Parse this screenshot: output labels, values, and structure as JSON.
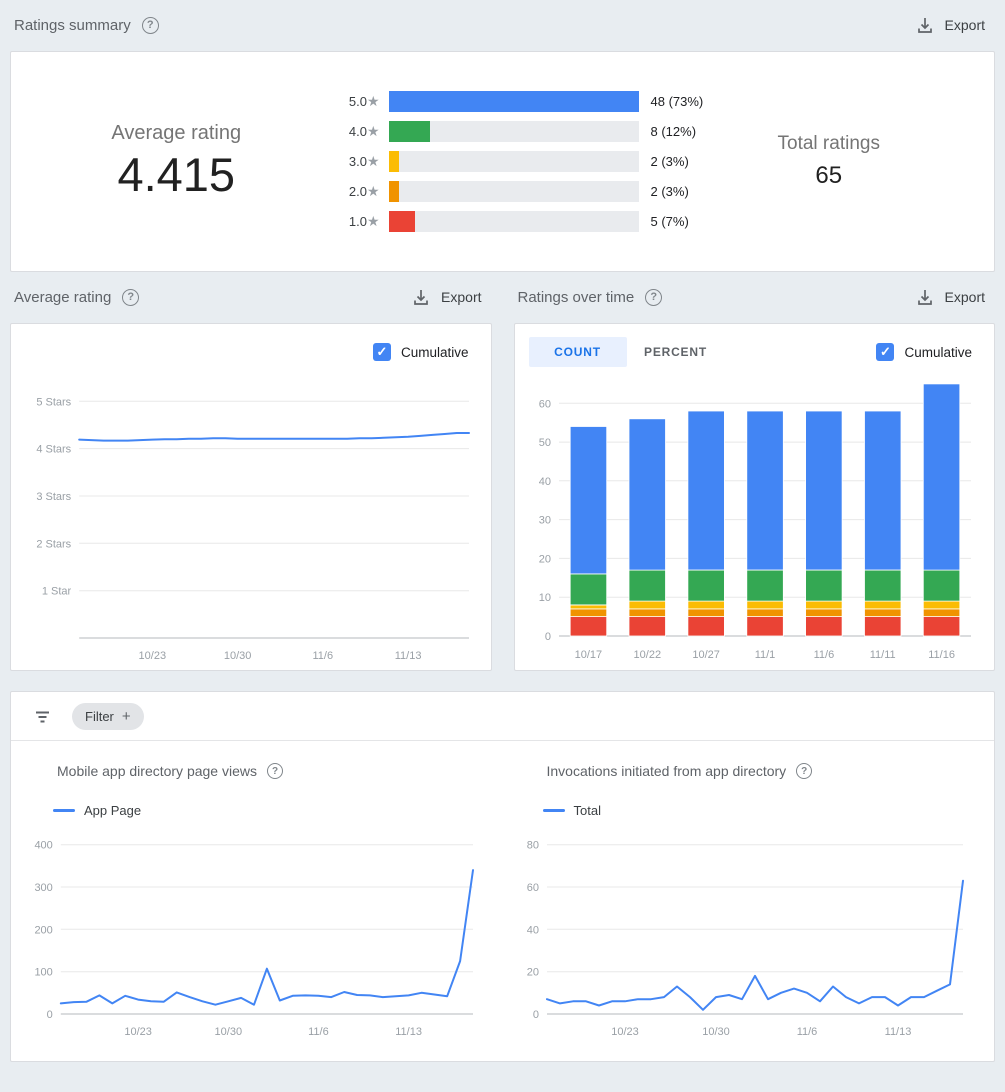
{
  "icons": {
    "help": "?",
    "check": "✓",
    "star": "★",
    "plus": "+"
  },
  "colors": {
    "accent_blue": "#4285f4",
    "green": "#34a853",
    "yellow": "#fbbc04",
    "orange": "#f09300",
    "red": "#ea4335",
    "tab_active_bg": "#e8f0fe",
    "tab_active_text": "#1a73e8"
  },
  "header": {
    "title": "Ratings summary",
    "export_label": "Export"
  },
  "summary": {
    "average_label": "Average rating",
    "average_value": "4.415",
    "total_label": "Total ratings",
    "total_value": "65"
  },
  "sections": {
    "average_rating": {
      "title": "Average rating",
      "export_label": "Export",
      "cumulative_label": "Cumulative"
    },
    "ratings_over_time": {
      "title": "Ratings over time",
      "export_label": "Export",
      "tabs": [
        "COUNT",
        "PERCENT"
      ],
      "active_tab": "COUNT",
      "cumulative_label": "Cumulative"
    }
  },
  "filter": {
    "chip_label": "Filter"
  },
  "bottom": {
    "left_title": "Mobile app directory page views",
    "right_title": "Invocations initiated from app directory"
  },
  "chart_data": [
    {
      "type": "bar",
      "orientation": "horizontal",
      "title": "Ratings summary",
      "total": 65,
      "max_value": 48,
      "rows": [
        {
          "stars": "5.0",
          "value": 48,
          "label": "48 (73%)",
          "color": "#4285f4"
        },
        {
          "stars": "4.0",
          "value": 8,
          "label": "8 (12%)",
          "color": "#34a853"
        },
        {
          "stars": "3.0",
          "value": 2,
          "label": "2 (3%)",
          "color": "#fbbc04"
        },
        {
          "stars": "2.0",
          "value": 2,
          "label": "2 (3%)",
          "color": "#f09300"
        },
        {
          "stars": "1.0",
          "value": 5,
          "label": "5 (7%)",
          "color": "#ea4335"
        }
      ]
    },
    {
      "type": "line",
      "title": "Average rating (cumulative)",
      "color": "#4285f4",
      "ylim": [
        0,
        5.45
      ],
      "grid": [
        {
          "v": 5,
          "label": "5 Stars"
        },
        {
          "v": 4,
          "label": "4 Stars"
        },
        {
          "v": 3,
          "label": "3 Stars"
        },
        {
          "v": 2,
          "label": "2 Stars"
        },
        {
          "v": 1,
          "label": "1 Star"
        },
        {
          "v": 0,
          "label": "",
          "axis": true
        }
      ],
      "x_start": "10/17",
      "x_ticks": [
        "10/23",
        "10/30",
        "11/6",
        "11/13"
      ],
      "tick_indices": [
        6,
        13,
        20,
        27
      ],
      "values": [
        4.19,
        4.18,
        4.17,
        4.17,
        4.17,
        4.18,
        4.19,
        4.2,
        4.2,
        4.21,
        4.21,
        4.22,
        4.22,
        4.21,
        4.21,
        4.21,
        4.21,
        4.21,
        4.21,
        4.21,
        4.21,
        4.21,
        4.21,
        4.22,
        4.22,
        4.23,
        4.24,
        4.25,
        4.27,
        4.29,
        4.31,
        4.33,
        4.33
      ]
    },
    {
      "type": "bar",
      "stacked": true,
      "title": "Ratings over time (cumulative count)",
      "categories": [
        "10/17",
        "10/22",
        "10/27",
        "11/1",
        "11/6",
        "11/11",
        "11/16"
      ],
      "yticks": [
        0,
        10,
        20,
        30,
        40,
        50,
        60
      ],
      "ylim": [
        0,
        66
      ],
      "series": [
        {
          "name": "1 star",
          "color": "#ea4335",
          "values": [
            5,
            5,
            5,
            5,
            5,
            5,
            5
          ]
        },
        {
          "name": "2 stars",
          "color": "#f09300",
          "values": [
            2,
            2,
            2,
            2,
            2,
            2,
            2
          ]
        },
        {
          "name": "3 stars",
          "color": "#fbbc04",
          "values": [
            1,
            2,
            2,
            2,
            2,
            2,
            2
          ]
        },
        {
          "name": "4 stars",
          "color": "#34a853",
          "values": [
            8,
            8,
            8,
            8,
            8,
            8,
            8
          ]
        },
        {
          "name": "5 stars",
          "color": "#4285f4",
          "values": [
            38,
            39,
            41,
            41,
            41,
            41,
            48
          ]
        }
      ],
      "totals": [
        54,
        56,
        58,
        58,
        58,
        58,
        65
      ]
    },
    {
      "type": "line",
      "title": "Mobile app directory page views",
      "legend": "App Page",
      "color": "#4285f4",
      "ylim": [
        0,
        430
      ],
      "grid": [
        {
          "v": 0,
          "label": "0",
          "axis": true
        },
        {
          "v": 100,
          "label": "100"
        },
        {
          "v": 200,
          "label": "200"
        },
        {
          "v": 300,
          "label": "300"
        },
        {
          "v": 400,
          "label": "400"
        }
      ],
      "x_start": "10/17",
      "x_ticks": [
        "10/23",
        "10/30",
        "11/6",
        "11/13"
      ],
      "tick_indices": [
        6,
        13,
        20,
        27
      ],
      "values": [
        25,
        28,
        29,
        44,
        25,
        43,
        34,
        30,
        29,
        51,
        40,
        30,
        22,
        30,
        38,
        22,
        107,
        32,
        43,
        44,
        43,
        40,
        52,
        45,
        44,
        40,
        42,
        44,
        50,
        46,
        42,
        125,
        340
      ]
    },
    {
      "type": "line",
      "title": "Invocations initiated from app directory",
      "legend": "Total",
      "color": "#4285f4",
      "ylim": [
        0,
        86
      ],
      "grid": [
        {
          "v": 0,
          "label": "0",
          "axis": true
        },
        {
          "v": 20,
          "label": "20"
        },
        {
          "v": 40,
          "label": "40"
        },
        {
          "v": 60,
          "label": "60"
        },
        {
          "v": 80,
          "label": "80"
        }
      ],
      "x_start": "10/17",
      "x_ticks": [
        "10/23",
        "10/30",
        "11/6",
        "11/13"
      ],
      "tick_indices": [
        6,
        13,
        20,
        27
      ],
      "values": [
        7,
        5,
        6,
        6,
        4,
        6,
        6,
        7,
        7,
        8,
        13,
        8,
        2,
        8,
        9,
        7,
        18,
        7,
        10,
        12,
        10,
        6,
        13,
        8,
        5,
        8,
        8,
        4,
        8,
        8,
        11,
        14,
        63
      ]
    }
  ]
}
